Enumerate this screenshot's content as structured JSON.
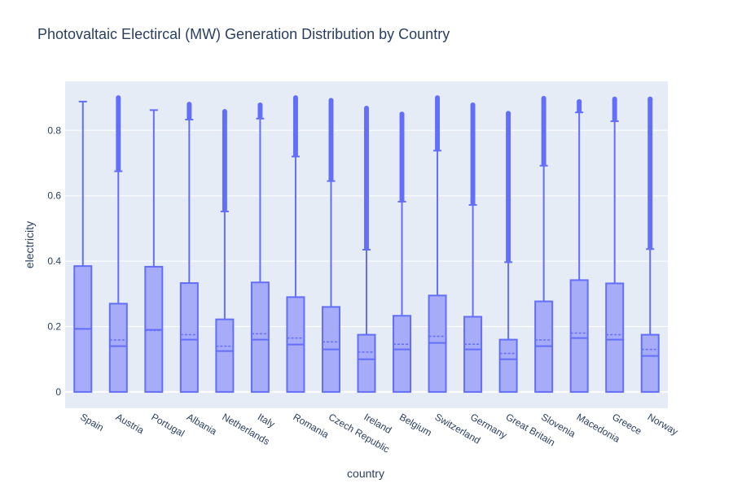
{
  "chart_data": {
    "type": "box",
    "title": "Photovaltaic Electircal (MW) Generation Distribution by Country",
    "xlabel": "country",
    "ylabel": "electricity",
    "ylim": [
      -0.05,
      0.95
    ],
    "yticks": [
      0,
      0.2,
      0.4,
      0.6,
      0.8
    ],
    "ytick_labels": [
      "0",
      "0.2",
      "0.4",
      "0.6",
      "0.8"
    ],
    "grid": true,
    "color": "#636efa",
    "box_fill": "#a6acf7",
    "plot_bg": "#e5ecf6",
    "categories": [
      "Spain",
      "Austria",
      "Portugal",
      "Albania",
      "Netherlands",
      "Italy",
      "Romania",
      "Czech Republic",
      "Ireland",
      "Belgium",
      "Switzerland",
      "Germany",
      "Great Britain",
      "Slovenia",
      "Macedonia",
      "Greece",
      "Norway"
    ],
    "boxes": [
      {
        "min": 0,
        "q1": 0,
        "median": 0.193,
        "mean": 0.193,
        "q3": 0.385,
        "upper_fence": 0.888,
        "outlier_max": null
      },
      {
        "min": 0,
        "q1": 0,
        "median": 0.14,
        "mean": 0.159,
        "q3": 0.27,
        "upper_fence": 0.675,
        "outlier_max": 0.9
      },
      {
        "min": 0,
        "q1": 0,
        "median": 0.19,
        "mean": 0.188,
        "q3": 0.383,
        "upper_fence": 0.862,
        "outlier_max": null
      },
      {
        "min": 0,
        "q1": 0,
        "median": 0.16,
        "mean": 0.175,
        "q3": 0.333,
        "upper_fence": 0.833,
        "outlier_max": 0.88
      },
      {
        "min": 0,
        "q1": 0,
        "median": 0.125,
        "mean": 0.14,
        "q3": 0.222,
        "upper_fence": 0.552,
        "outlier_max": 0.858
      },
      {
        "min": 0,
        "q1": 0,
        "median": 0.16,
        "mean": 0.178,
        "q3": 0.335,
        "upper_fence": 0.836,
        "outlier_max": 0.878
      },
      {
        "min": 0,
        "q1": 0,
        "median": 0.145,
        "mean": 0.165,
        "q3": 0.29,
        "upper_fence": 0.72,
        "outlier_max": 0.9
      },
      {
        "min": 0,
        "q1": 0,
        "median": 0.13,
        "mean": 0.153,
        "q3": 0.26,
        "upper_fence": 0.645,
        "outlier_max": 0.892
      },
      {
        "min": 0,
        "q1": 0,
        "median": 0.1,
        "mean": 0.122,
        "q3": 0.175,
        "upper_fence": 0.435,
        "outlier_max": 0.868
      },
      {
        "min": 0,
        "q1": 0,
        "median": 0.13,
        "mean": 0.146,
        "q3": 0.233,
        "upper_fence": 0.582,
        "outlier_max": 0.85
      },
      {
        "min": 0,
        "q1": 0,
        "median": 0.15,
        "mean": 0.17,
        "q3": 0.295,
        "upper_fence": 0.738,
        "outlier_max": 0.9
      },
      {
        "min": 0,
        "q1": 0,
        "median": 0.13,
        "mean": 0.146,
        "q3": 0.23,
        "upper_fence": 0.572,
        "outlier_max": 0.878
      },
      {
        "min": 0,
        "q1": 0,
        "median": 0.1,
        "mean": 0.118,
        "q3": 0.16,
        "upper_fence": 0.397,
        "outlier_max": 0.852
      },
      {
        "min": 0,
        "q1": 0,
        "median": 0.14,
        "mean": 0.159,
        "q3": 0.277,
        "upper_fence": 0.692,
        "outlier_max": 0.898
      },
      {
        "min": 0,
        "q1": 0,
        "median": 0.165,
        "mean": 0.18,
        "q3": 0.342,
        "upper_fence": 0.855,
        "outlier_max": 0.888
      },
      {
        "min": 0,
        "q1": 0,
        "median": 0.16,
        "mean": 0.175,
        "q3": 0.332,
        "upper_fence": 0.828,
        "outlier_max": 0.896
      },
      {
        "min": 0,
        "q1": 0,
        "median": 0.11,
        "mean": 0.13,
        "q3": 0.175,
        "upper_fence": 0.437,
        "outlier_max": 0.896
      }
    ]
  }
}
